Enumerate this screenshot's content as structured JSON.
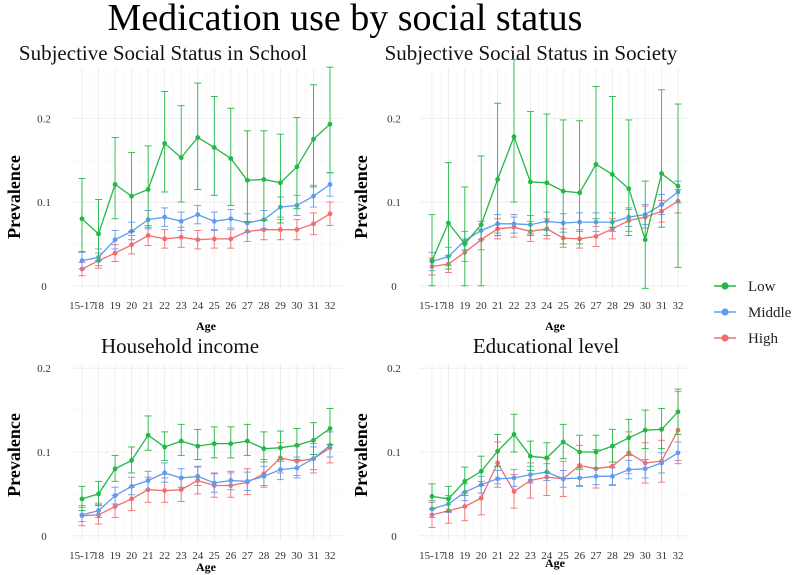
{
  "figure": {
    "title": "Medication use by social status"
  },
  "legend": {
    "entries": [
      {
        "label": "Low",
        "color": "#22b845"
      },
      {
        "label": "Middle",
        "color": "#5f9bf0"
      },
      {
        "label": "High",
        "color": "#f26d6d"
      }
    ]
  },
  "chart_data": [
    {
      "type": "line",
      "title": "Subjective Social Status in School",
      "xlabel": "Age",
      "ylabel": "Prevalence",
      "categories": [
        "15-17",
        "18",
        "19",
        "20",
        "21",
        "22",
        "23",
        "24",
        "25",
        "26",
        "27",
        "28",
        "29",
        "30",
        "31",
        "32"
      ],
      "yticks": [
        0,
        0.1,
        0.2
      ],
      "ytick_labels": [
        "0",
        "0.1",
        "0.2"
      ],
      "ylim": [
        -0.005,
        0.26
      ],
      "series": [
        {
          "name": "Low",
          "color": "#22b845",
          "values": [
            0.08,
            0.062,
            0.121,
            0.107,
            0.115,
            0.17,
            0.153,
            0.177,
            0.165,
            0.152,
            0.126,
            0.127,
            0.123,
            0.142,
            0.175,
            0.193
          ],
          "lower": [
            0.041,
            0.03,
            0.08,
            0.065,
            0.07,
            0.112,
            0.1,
            0.115,
            0.108,
            0.096,
            0.076,
            0.078,
            0.075,
            0.092,
            0.118,
            0.135
          ],
          "upper": [
            0.128,
            0.103,
            0.177,
            0.159,
            0.167,
            0.232,
            0.215,
            0.242,
            0.226,
            0.212,
            0.185,
            0.185,
            0.181,
            0.201,
            0.24,
            0.261
          ]
        },
        {
          "name": "Middle",
          "color": "#5f9bf0",
          "values": [
            0.03,
            0.034,
            0.055,
            0.065,
            0.079,
            0.082,
            0.077,
            0.085,
            0.077,
            0.08,
            0.075,
            0.079,
            0.094,
            0.096,
            0.107,
            0.121
          ],
          "lower": [
            0.02,
            0.024,
            0.044,
            0.055,
            0.068,
            0.071,
            0.066,
            0.074,
            0.066,
            0.069,
            0.064,
            0.068,
            0.082,
            0.084,
            0.094,
            0.107
          ],
          "upper": [
            0.04,
            0.044,
            0.066,
            0.076,
            0.09,
            0.093,
            0.088,
            0.096,
            0.088,
            0.091,
            0.086,
            0.09,
            0.106,
            0.108,
            0.12,
            0.135
          ]
        },
        {
          "name": "High",
          "color": "#f26d6d",
          "values": [
            0.02,
            0.03,
            0.039,
            0.049,
            0.06,
            0.056,
            0.058,
            0.055,
            0.056,
            0.056,
            0.065,
            0.067,
            0.067,
            0.067,
            0.074,
            0.086
          ],
          "lower": [
            0.012,
            0.021,
            0.029,
            0.038,
            0.048,
            0.045,
            0.046,
            0.044,
            0.045,
            0.045,
            0.053,
            0.055,
            0.055,
            0.055,
            0.061,
            0.072
          ],
          "upper": [
            0.028,
            0.039,
            0.049,
            0.06,
            0.072,
            0.067,
            0.07,
            0.066,
            0.067,
            0.067,
            0.077,
            0.079,
            0.079,
            0.079,
            0.087,
            0.1
          ]
        }
      ]
    },
    {
      "type": "line",
      "title": "Subjective Social Status in Society",
      "xlabel": "Age",
      "ylabel": "Prevalence",
      "categories": [
        "15-17",
        "18",
        "19",
        "20",
        "21",
        "22",
        "23",
        "24",
        "25",
        "26",
        "27",
        "28",
        "29",
        "30",
        "31",
        "32"
      ],
      "yticks": [
        0,
        0.1,
        0.2
      ],
      "ytick_labels": [
        "0",
        "0.1",
        "0.2"
      ],
      "ylim": [
        -0.005,
        0.26
      ],
      "series": [
        {
          "name": "Low",
          "color": "#22b845",
          "values": [
            0.03,
            0.075,
            0.05,
            0.073,
            0.127,
            0.178,
            0.124,
            0.123,
            0.113,
            0.111,
            0.145,
            0.133,
            0.116,
            0.055,
            0.134,
            0.119
          ],
          "lower": [
            0.0,
            0.02,
            0.0,
            0.0,
            0.06,
            0.1,
            0.06,
            0.06,
            0.05,
            0.05,
            0.08,
            0.07,
            0.06,
            -0.003,
            0.07,
            0.022
          ],
          "upper": [
            0.085,
            0.147,
            0.118,
            0.155,
            0.218,
            0.27,
            0.208,
            0.205,
            0.198,
            0.197,
            0.238,
            0.226,
            0.198,
            0.125,
            0.234,
            0.217
          ]
        },
        {
          "name": "Middle",
          "color": "#5f9bf0",
          "values": [
            0.029,
            0.035,
            0.054,
            0.066,
            0.074,
            0.074,
            0.073,
            0.077,
            0.075,
            0.076,
            0.076,
            0.076,
            0.082,
            0.085,
            0.097,
            0.112
          ],
          "lower": [
            0.018,
            0.024,
            0.043,
            0.055,
            0.063,
            0.063,
            0.062,
            0.066,
            0.064,
            0.065,
            0.065,
            0.065,
            0.071,
            0.073,
            0.085,
            0.099
          ],
          "upper": [
            0.04,
            0.046,
            0.065,
            0.077,
            0.085,
            0.085,
            0.084,
            0.088,
            0.086,
            0.087,
            0.087,
            0.087,
            0.093,
            0.097,
            0.109,
            0.125
          ]
        },
        {
          "name": "High",
          "color": "#f26d6d",
          "values": [
            0.023,
            0.026,
            0.04,
            0.055,
            0.068,
            0.07,
            0.065,
            0.068,
            0.057,
            0.056,
            0.059,
            0.068,
            0.078,
            0.082,
            0.089,
            0.101
          ],
          "lower": [
            0.013,
            0.016,
            0.029,
            0.043,
            0.056,
            0.058,
            0.053,
            0.056,
            0.046,
            0.045,
            0.047,
            0.056,
            0.065,
            0.069,
            0.076,
            0.087
          ],
          "upper": [
            0.033,
            0.036,
            0.051,
            0.067,
            0.08,
            0.082,
            0.077,
            0.08,
            0.068,
            0.067,
            0.071,
            0.08,
            0.091,
            0.095,
            0.102,
            0.115
          ]
        }
      ]
    },
    {
      "type": "line",
      "title": "Household income",
      "xlabel": "Age",
      "ylabel": "Prevalence",
      "categories": [
        "15-17",
        "18",
        "19",
        "20",
        "21",
        "22",
        "23",
        "24",
        "25",
        "26",
        "27",
        "28",
        "29",
        "30",
        "31",
        "32"
      ],
      "yticks": [
        0,
        0.1,
        0.2
      ],
      "ytick_labels": [
        "0",
        "0.1",
        "0.2"
      ],
      "ylim": [
        -0.005,
        0.205
      ],
      "series": [
        {
          "name": "Low",
          "color": "#22b845",
          "values": [
            0.044,
            0.05,
            0.08,
            0.09,
            0.12,
            0.106,
            0.113,
            0.107,
            0.11,
            0.11,
            0.113,
            0.104,
            0.105,
            0.108,
            0.114,
            0.128
          ],
          "lower": [
            0.03,
            0.036,
            0.065,
            0.075,
            0.102,
            0.09,
            0.096,
            0.091,
            0.093,
            0.093,
            0.096,
            0.088,
            0.089,
            0.091,
            0.097,
            0.109
          ],
          "upper": [
            0.059,
            0.065,
            0.096,
            0.106,
            0.143,
            0.124,
            0.133,
            0.127,
            0.13,
            0.13,
            0.133,
            0.124,
            0.125,
            0.128,
            0.135,
            0.152
          ]
        },
        {
          "name": "Middle",
          "color": "#5f9bf0",
          "values": [
            0.025,
            0.03,
            0.048,
            0.059,
            0.066,
            0.075,
            0.069,
            0.071,
            0.063,
            0.066,
            0.065,
            0.071,
            0.079,
            0.081,
            0.092,
            0.108
          ],
          "lower": [
            0.017,
            0.022,
            0.038,
            0.049,
            0.055,
            0.064,
            0.058,
            0.06,
            0.052,
            0.055,
            0.054,
            0.06,
            0.067,
            0.069,
            0.079,
            0.094
          ],
          "upper": [
            0.034,
            0.039,
            0.058,
            0.07,
            0.077,
            0.087,
            0.08,
            0.083,
            0.074,
            0.077,
            0.076,
            0.083,
            0.091,
            0.094,
            0.106,
            0.124
          ]
        },
        {
          "name": "High",
          "color": "#f26d6d",
          "values": [
            0.024,
            0.025,
            0.035,
            0.044,
            0.055,
            0.054,
            0.055,
            0.066,
            0.06,
            0.06,
            0.064,
            0.074,
            0.093,
            0.089,
            0.092,
            0.105
          ],
          "lower": [
            0.012,
            0.014,
            0.022,
            0.03,
            0.04,
            0.04,
            0.041,
            0.05,
            0.046,
            0.046,
            0.049,
            0.058,
            0.075,
            0.072,
            0.075,
            0.087
          ],
          "upper": [
            0.036,
            0.037,
            0.048,
            0.058,
            0.07,
            0.069,
            0.07,
            0.082,
            0.075,
            0.075,
            0.08,
            0.091,
            0.111,
            0.107,
            0.11,
            0.124
          ]
        }
      ]
    },
    {
      "type": "line",
      "title": "Educational level",
      "xlabel": "Age",
      "ylabel": "Prevalence",
      "categories": [
        "15-17",
        "18",
        "19",
        "20",
        "21",
        "22",
        "23",
        "24",
        "25",
        "26",
        "27",
        "28",
        "29",
        "30",
        "31",
        "32"
      ],
      "yticks": [
        0,
        0.1,
        0.2
      ],
      "ytick_labels": [
        "0",
        "0.1",
        "0.2"
      ],
      "ylim": [
        -0.005,
        0.205
      ],
      "series": [
        {
          "name": "Low",
          "color": "#22b845",
          "values": [
            0.047,
            0.044,
            0.065,
            0.077,
            0.101,
            0.121,
            0.095,
            0.093,
            0.112,
            0.1,
            0.1,
            0.107,
            0.117,
            0.126,
            0.127,
            0.148
          ],
          "lower": [
            0.032,
            0.029,
            0.048,
            0.06,
            0.083,
            0.1,
            0.078,
            0.076,
            0.092,
            0.081,
            0.081,
            0.088,
            0.096,
            0.104,
            0.104,
            0.121
          ],
          "upper": [
            0.062,
            0.059,
            0.082,
            0.095,
            0.121,
            0.145,
            0.113,
            0.111,
            0.133,
            0.12,
            0.12,
            0.127,
            0.139,
            0.15,
            0.152,
            0.175
          ]
        },
        {
          "name": "Middle",
          "color": "#5f9bf0",
          "values": [
            0.032,
            0.038,
            0.052,
            0.061,
            0.068,
            0.069,
            0.073,
            0.076,
            0.068,
            0.069,
            0.071,
            0.071,
            0.079,
            0.08,
            0.087,
            0.099
          ],
          "lower": [
            0.022,
            0.028,
            0.042,
            0.051,
            0.058,
            0.059,
            0.063,
            0.066,
            0.058,
            0.059,
            0.061,
            0.061,
            0.068,
            0.069,
            0.075,
            0.086
          ],
          "upper": [
            0.042,
            0.048,
            0.062,
            0.071,
            0.078,
            0.079,
            0.083,
            0.086,
            0.078,
            0.079,
            0.081,
            0.081,
            0.09,
            0.091,
            0.099,
            0.112
          ]
        },
        {
          "name": "High",
          "color": "#f26d6d",
          "values": [
            0.025,
            0.03,
            0.035,
            0.045,
            0.087,
            0.053,
            0.066,
            0.07,
            0.068,
            0.084,
            0.08,
            0.083,
            0.099,
            0.087,
            0.089,
            0.126
          ],
          "lower": [
            0.01,
            0.015,
            0.018,
            0.025,
            0.062,
            0.033,
            0.045,
            0.048,
            0.047,
            0.06,
            0.057,
            0.06,
            0.074,
            0.063,
            0.064,
            0.09
          ],
          "upper": [
            0.04,
            0.045,
            0.052,
            0.065,
            0.112,
            0.073,
            0.087,
            0.092,
            0.089,
            0.108,
            0.103,
            0.106,
            0.124,
            0.111,
            0.114,
            0.172
          ]
        }
      ]
    }
  ]
}
